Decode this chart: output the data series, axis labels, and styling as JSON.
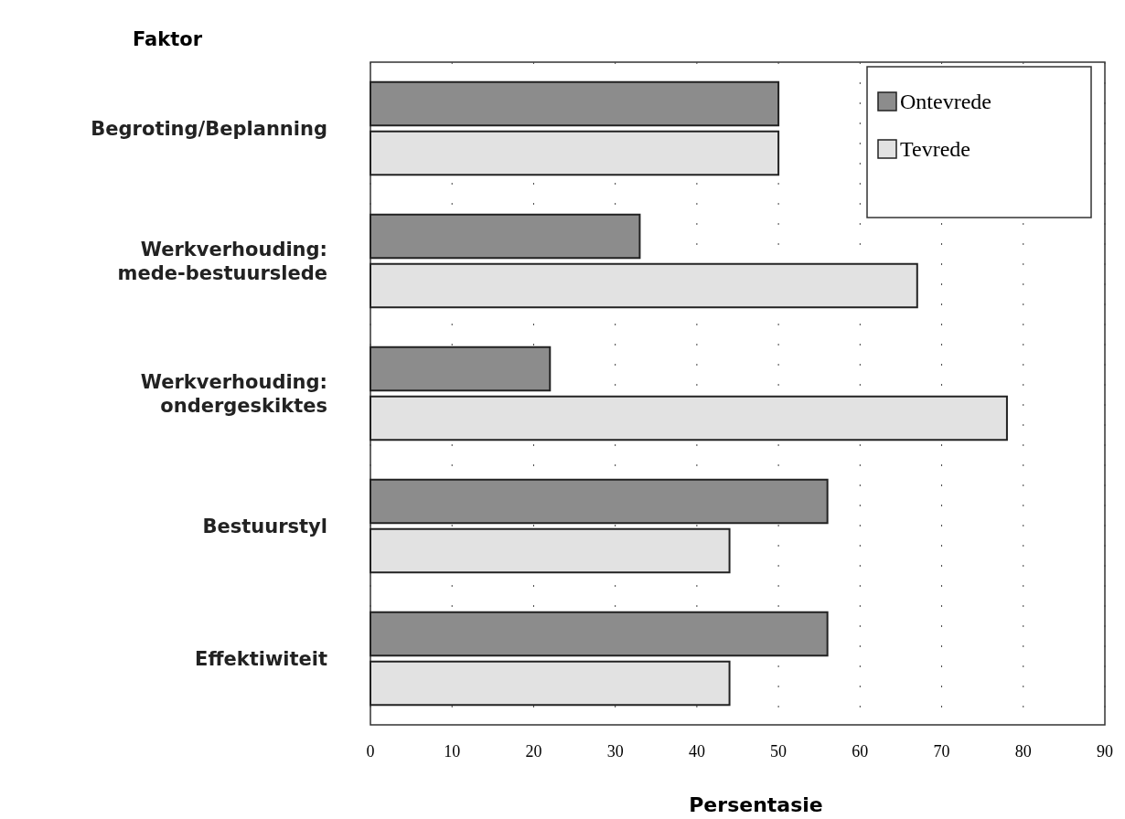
{
  "chart_data": {
    "type": "bar",
    "orientation": "horizontal",
    "ylabel": "Faktor",
    "xlabel": "Persentasie",
    "categories": [
      "Begroting/Beplanning",
      "Werkverhouding:\nmede-bestuurslede",
      "Werkverhouding:\nondergeskiktes",
      "Bestuurstyl",
      "Effektiwiteit"
    ],
    "series": [
      {
        "name": "Ontevrede",
        "color": "#8c8c8c",
        "values": [
          50,
          33,
          22,
          56,
          56
        ]
      },
      {
        "name": "Tevrede",
        "color": "#e2e2e2",
        "values": [
          50,
          67,
          78,
          44,
          44
        ]
      }
    ],
    "xlim": [
      0,
      90
    ],
    "xticks": [
      0,
      10,
      20,
      30,
      40,
      50,
      60,
      70,
      80,
      90
    ],
    "grid": "x",
    "legend": "top right"
  }
}
